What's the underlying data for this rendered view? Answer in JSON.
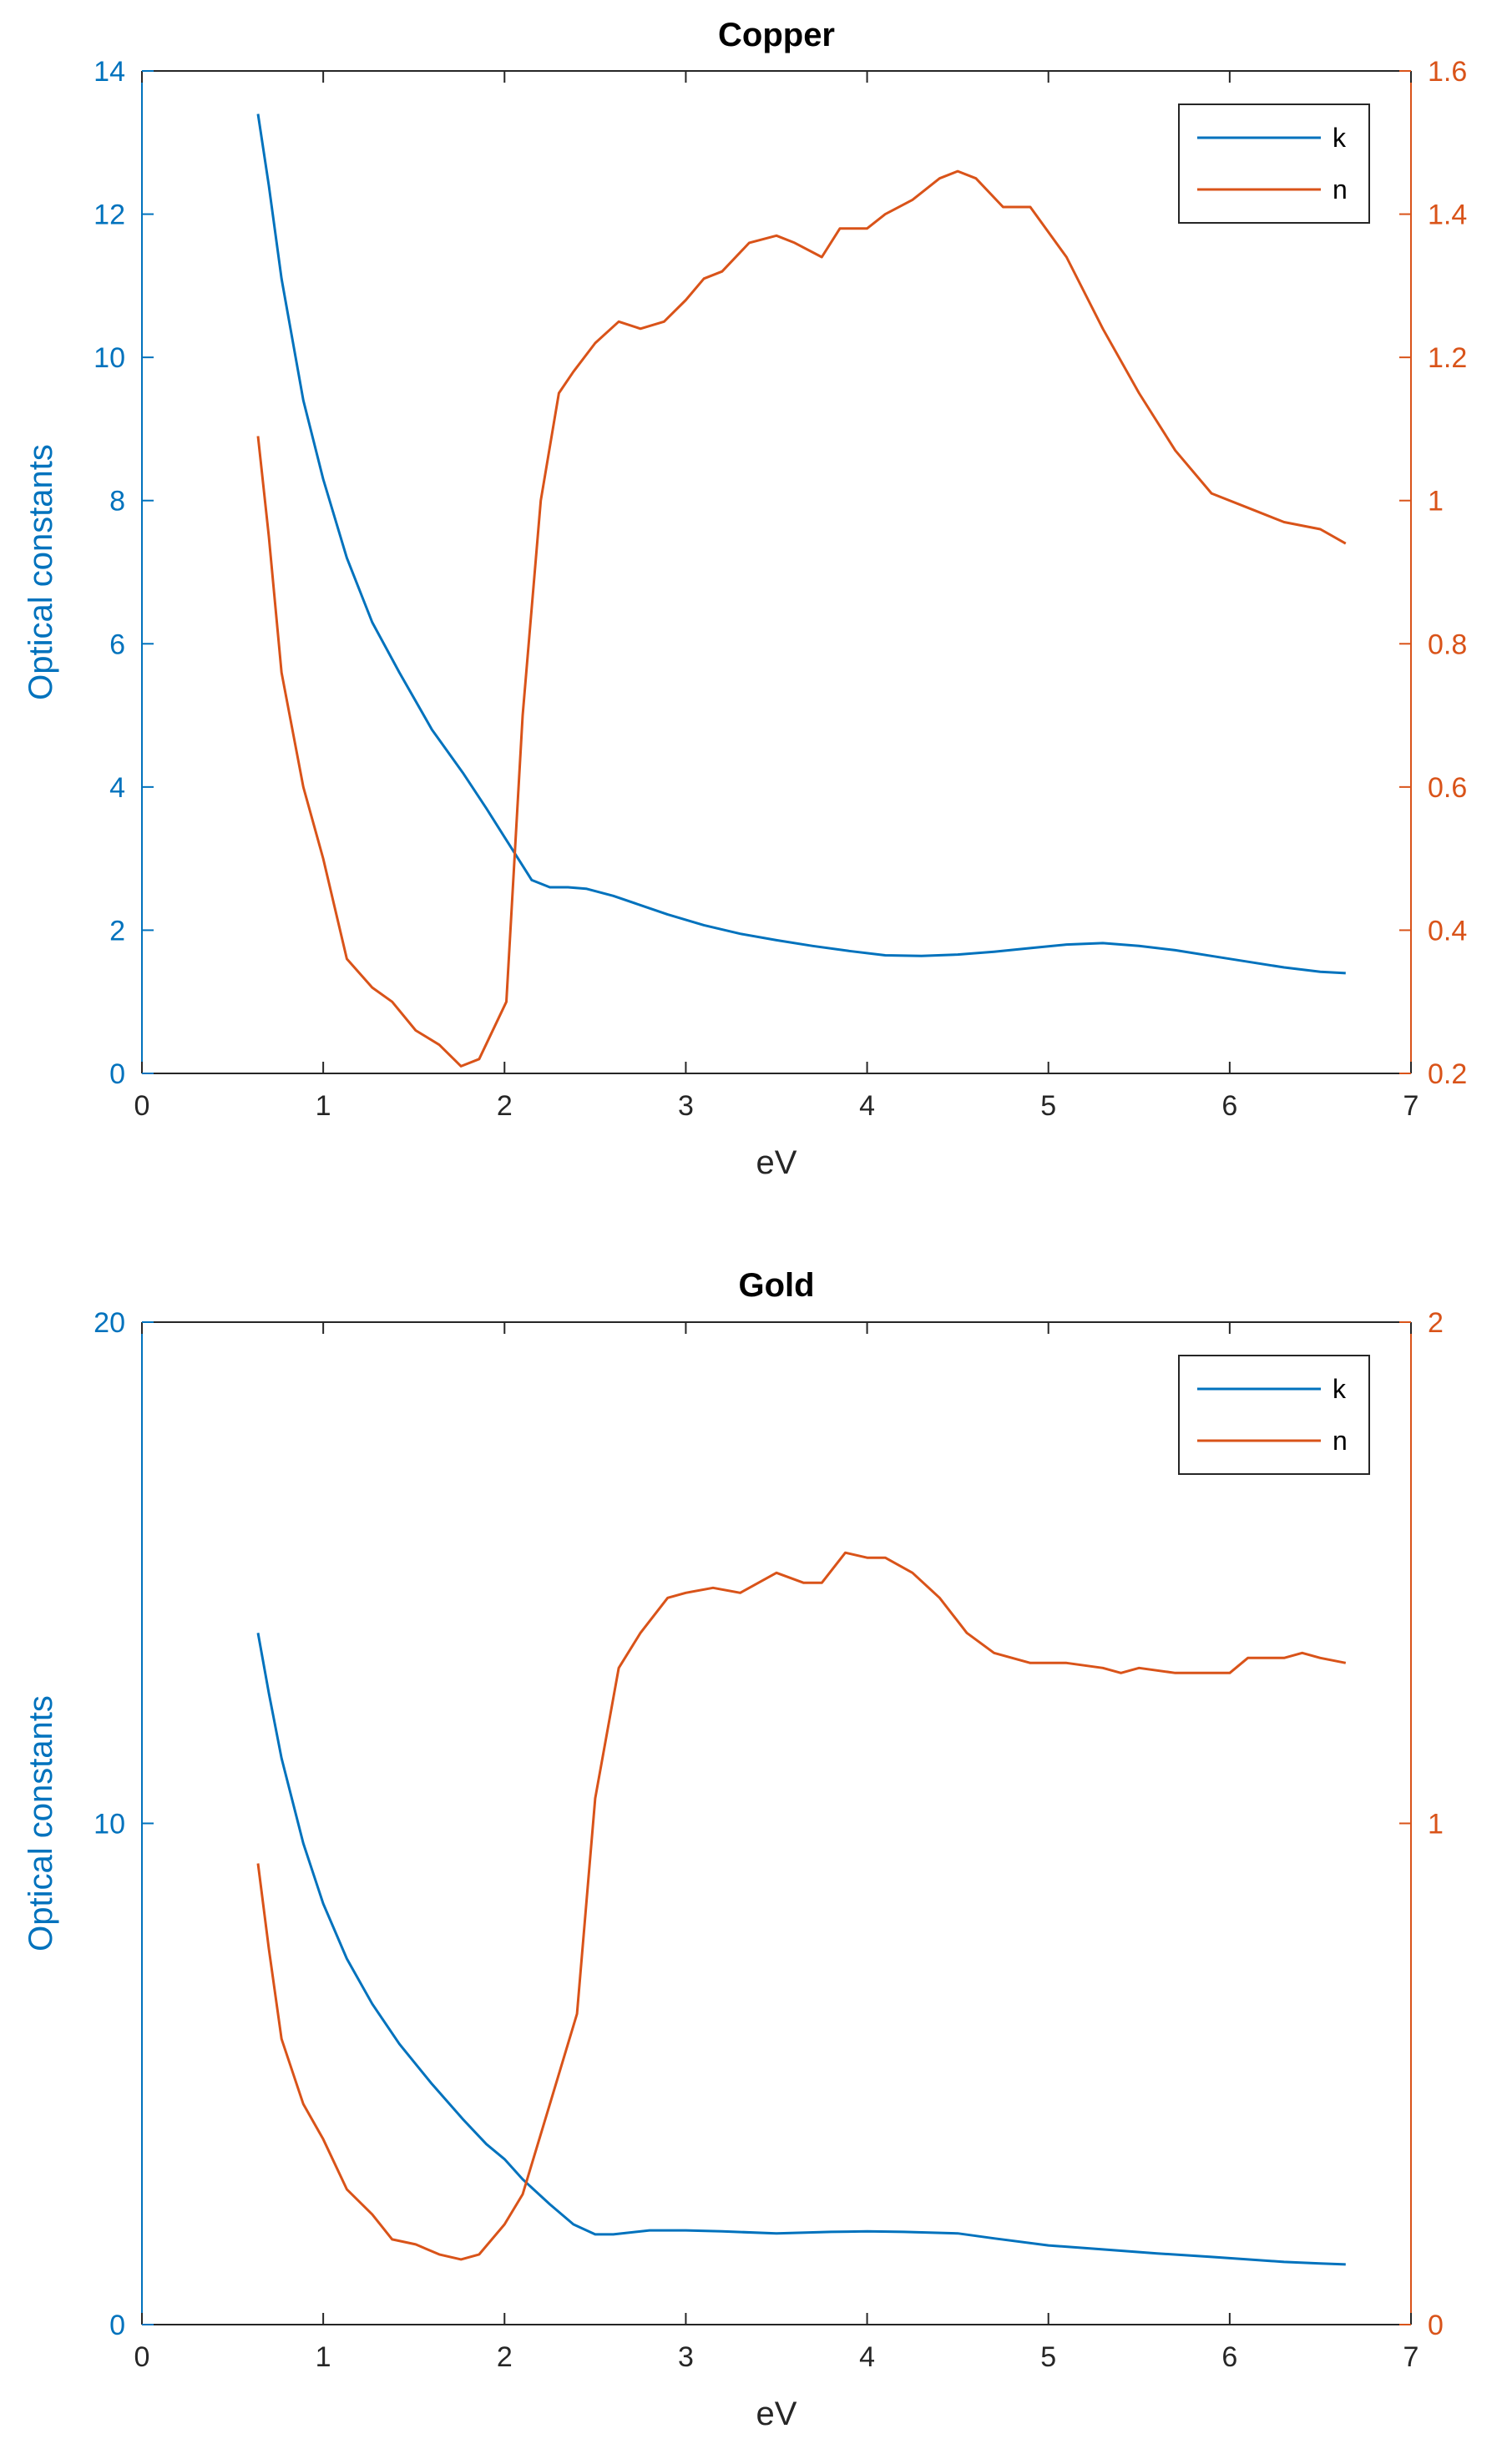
{
  "colors": {
    "left_axis": "#0072BD",
    "right_axis": "#D95319",
    "frame": "#262626"
  },
  "chart_data": [
    {
      "type": "line",
      "title": "Copper",
      "xlabel": "eV",
      "ylabel": "Optical constants",
      "xlim": [
        0,
        7
      ],
      "xticks": [
        0,
        1,
        2,
        3,
        4,
        5,
        6,
        7
      ],
      "ylim": [
        0,
        14
      ],
      "yticks": [
        0,
        2,
        4,
        6,
        8,
        10,
        12,
        14
      ],
      "y2lim": [
        0.2,
        1.6
      ],
      "y2ticks": [
        0.2,
        0.4,
        0.6,
        0.8,
        1.0,
        1.2,
        1.4,
        1.6
      ],
      "y2ticklabels": [
        "0.2",
        "0.4",
        "0.6",
        "0.8",
        "1",
        "1.2",
        "1.4",
        "1.6"
      ],
      "legend_position": "top-right",
      "grid": false,
      "series": [
        {
          "name": "k",
          "axis": "left",
          "color": "#0072BD",
          "x": [
            0.64,
            0.7,
            0.77,
            0.89,
            1.0,
            1.13,
            1.27,
            1.42,
            1.6,
            1.77,
            1.9,
            2.0,
            2.1,
            2.15,
            2.25,
            2.35,
            2.45,
            2.6,
            2.75,
            2.9,
            3.1,
            3.3,
            3.5,
            3.7,
            3.9,
            4.1,
            4.3,
            4.5,
            4.7,
            4.9,
            5.1,
            5.3,
            5.5,
            5.7,
            5.9,
            6.1,
            6.3,
            6.5,
            6.64
          ],
          "y": [
            13.4,
            12.4,
            11.1,
            9.4,
            8.3,
            7.2,
            6.3,
            5.6,
            4.8,
            4.2,
            3.7,
            3.3,
            2.9,
            2.7,
            2.6,
            2.6,
            2.58,
            2.48,
            2.35,
            2.22,
            2.07,
            1.95,
            1.86,
            1.78,
            1.71,
            1.65,
            1.64,
            1.66,
            1.7,
            1.75,
            1.8,
            1.82,
            1.78,
            1.72,
            1.64,
            1.56,
            1.48,
            1.42,
            1.4
          ]
        },
        {
          "name": "n",
          "axis": "right",
          "color": "#D95319",
          "x": [
            0.64,
            0.7,
            0.77,
            0.89,
            1.0,
            1.13,
            1.27,
            1.38,
            1.51,
            1.64,
            1.76,
            1.86,
            2.01,
            2.1,
            2.2,
            2.3,
            2.38,
            2.5,
            2.63,
            2.75,
            2.88,
            3.0,
            3.1,
            3.2,
            3.35,
            3.5,
            3.6,
            3.75,
            3.85,
            4.0,
            4.1,
            4.25,
            4.4,
            4.5,
            4.6,
            4.75,
            4.9,
            5.1,
            5.3,
            5.5,
            5.7,
            5.9,
            6.1,
            6.3,
            6.5,
            6.64
          ],
          "y": [
            1.09,
            0.95,
            0.76,
            0.6,
            0.5,
            0.36,
            0.32,
            0.3,
            0.26,
            0.24,
            0.21,
            0.22,
            0.3,
            0.7,
            1.0,
            1.15,
            1.18,
            1.22,
            1.25,
            1.24,
            1.25,
            1.28,
            1.31,
            1.32,
            1.36,
            1.37,
            1.36,
            1.34,
            1.38,
            1.38,
            1.4,
            1.42,
            1.45,
            1.46,
            1.45,
            1.41,
            1.41,
            1.34,
            1.24,
            1.15,
            1.07,
            1.01,
            0.99,
            0.97,
            0.96,
            0.94
          ]
        }
      ]
    },
    {
      "type": "line",
      "title": "Gold",
      "xlabel": "eV",
      "ylabel": "Optical constants",
      "xlim": [
        0,
        7
      ],
      "xticks": [
        0,
        1,
        2,
        3,
        4,
        5,
        6,
        7
      ],
      "ylim": [
        0,
        20
      ],
      "yticks": [
        0,
        10,
        20
      ],
      "y2lim": [
        0,
        2
      ],
      "y2ticks": [
        0,
        1,
        2
      ],
      "y2ticklabels": [
        "0",
        "1",
        "2"
      ],
      "legend_position": "top-right",
      "grid": false,
      "series": [
        {
          "name": "k",
          "axis": "left",
          "color": "#0072BD",
          "x": [
            0.64,
            0.7,
            0.77,
            0.89,
            1.0,
            1.13,
            1.27,
            1.42,
            1.6,
            1.77,
            1.9,
            2.0,
            2.1,
            2.25,
            2.38,
            2.5,
            2.6,
            2.8,
            3.0,
            3.2,
            3.5,
            3.8,
            4.0,
            4.2,
            4.5,
            4.7,
            5.0,
            5.3,
            5.6,
            5.9,
            6.1,
            6.3,
            6.5,
            6.64
          ],
          "y": [
            13.8,
            12.6,
            11.3,
            9.6,
            8.4,
            7.3,
            6.4,
            5.6,
            4.8,
            4.1,
            3.6,
            3.3,
            2.9,
            2.4,
            2.0,
            1.8,
            1.8,
            1.88,
            1.88,
            1.86,
            1.82,
            1.85,
            1.86,
            1.85,
            1.82,
            1.72,
            1.58,
            1.5,
            1.42,
            1.35,
            1.3,
            1.25,
            1.22,
            1.2
          ]
        },
        {
          "name": "n",
          "axis": "right",
          "color": "#D95319",
          "x": [
            0.64,
            0.7,
            0.77,
            0.89,
            1.0,
            1.13,
            1.27,
            1.38,
            1.51,
            1.64,
            1.76,
            1.86,
            2.0,
            2.1,
            2.25,
            2.4,
            2.5,
            2.63,
            2.75,
            2.9,
            3.0,
            3.15,
            3.3,
            3.5,
            3.65,
            3.75,
            3.88,
            4.0,
            4.1,
            4.25,
            4.4,
            4.55,
            4.7,
            4.9,
            5.1,
            5.3,
            5.4,
            5.5,
            5.7,
            5.9,
            6.0,
            6.1,
            6.3,
            6.4,
            6.5,
            6.64
          ],
          "y": [
            0.92,
            0.75,
            0.57,
            0.44,
            0.37,
            0.27,
            0.22,
            0.17,
            0.16,
            0.14,
            0.13,
            0.14,
            0.2,
            0.26,
            0.44,
            0.62,
            1.05,
            1.31,
            1.38,
            1.45,
            1.46,
            1.47,
            1.46,
            1.5,
            1.48,
            1.48,
            1.54,
            1.53,
            1.53,
            1.5,
            1.45,
            1.38,
            1.34,
            1.32,
            1.32,
            1.31,
            1.3,
            1.31,
            1.3,
            1.3,
            1.3,
            1.33,
            1.33,
            1.34,
            1.33,
            1.32
          ]
        }
      ]
    }
  ]
}
